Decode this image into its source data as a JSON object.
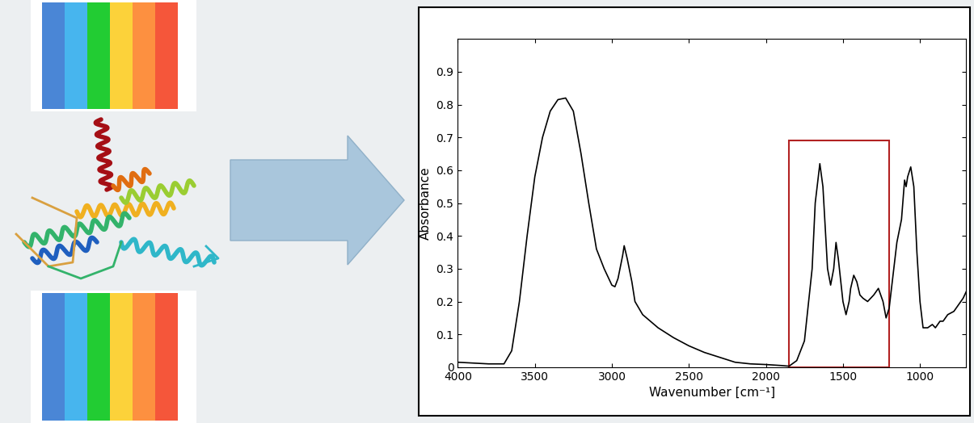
{
  "chart_data": {
    "type": "line",
    "xlabel": "Wavenumber [cm⁻¹]",
    "ylabel": "Absorbance",
    "x": [
      4000,
      3800,
      3700,
      3650,
      3600,
      3550,
      3500,
      3450,
      3400,
      3350,
      3300,
      3250,
      3200,
      3150,
      3100,
      3050,
      3000,
      2980,
      2960,
      2930,
      2920,
      2900,
      2870,
      2850,
      2800,
      2700,
      2600,
      2500,
      2400,
      2300,
      2200,
      2100,
      2000,
      1900,
      1850,
      1800,
      1750,
      1700,
      1680,
      1650,
      1630,
      1600,
      1580,
      1560,
      1545,
      1530,
      1500,
      1480,
      1460,
      1450,
      1430,
      1410,
      1390,
      1370,
      1340,
      1300,
      1270,
      1240,
      1220,
      1200,
      1170,
      1150,
      1120,
      1100,
      1090,
      1080,
      1060,
      1040,
      1020,
      1000,
      980,
      950,
      920,
      900,
      870,
      850,
      820,
      780,
      750,
      720,
      700
    ],
    "values": [
      0.015,
      0.01,
      0.01,
      0.05,
      0.2,
      0.4,
      0.58,
      0.7,
      0.78,
      0.815,
      0.82,
      0.78,
      0.65,
      0.5,
      0.36,
      0.3,
      0.25,
      0.245,
      0.27,
      0.34,
      0.37,
      0.33,
      0.26,
      0.2,
      0.16,
      0.12,
      0.09,
      0.065,
      0.045,
      0.03,
      0.015,
      0.01,
      0.008,
      0.005,
      0.003,
      0.02,
      0.08,
      0.3,
      0.5,
      0.62,
      0.55,
      0.3,
      0.25,
      0.3,
      0.38,
      0.33,
      0.2,
      0.16,
      0.2,
      0.24,
      0.28,
      0.26,
      0.22,
      0.21,
      0.2,
      0.22,
      0.24,
      0.2,
      0.15,
      0.18,
      0.3,
      0.38,
      0.45,
      0.57,
      0.55,
      0.58,
      0.61,
      0.55,
      0.35,
      0.2,
      0.12,
      0.12,
      0.13,
      0.12,
      0.14,
      0.14,
      0.16,
      0.17,
      0.19,
      0.21,
      0.23
    ],
    "color": "#000000",
    "xlim": [
      4000,
      700
    ],
    "xticks": [
      4000,
      3500,
      3000,
      2500,
      2000,
      1500,
      1000
    ],
    "ylim": [
      0,
      1
    ],
    "yticks": [
      0,
      0.1,
      0.2,
      0.3,
      0.4,
      0.5,
      0.6,
      0.7,
      0.8,
      0.9
    ],
    "grid": false,
    "highlight_region": {
      "xlim": [
        1850,
        1200
      ],
      "ylim": [
        0,
        0.69
      ],
      "color": "#b22222"
    }
  }
}
